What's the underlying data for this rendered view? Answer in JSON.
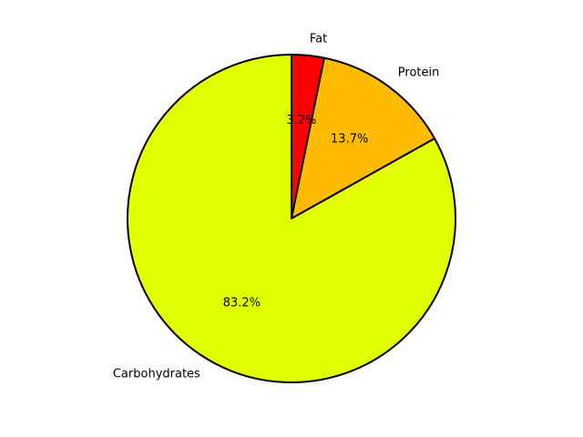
{
  "chart_data": {
    "type": "pie",
    "title": "",
    "start_angle_deg": 90,
    "direction": "clockwise",
    "edge_color": "#000000",
    "legend": "none",
    "slices": [
      {
        "label": "Fat",
        "value": 3.2,
        "pct_label": "3.2%",
        "color": "#ff0000"
      },
      {
        "label": "Protein",
        "value": 13.7,
        "pct_label": "13.7%",
        "color": "#ffbb00"
      },
      {
        "label": "Carbohydrates",
        "value": 83.2,
        "pct_label": "83.2%",
        "color": "#e2ff00"
      }
    ]
  }
}
